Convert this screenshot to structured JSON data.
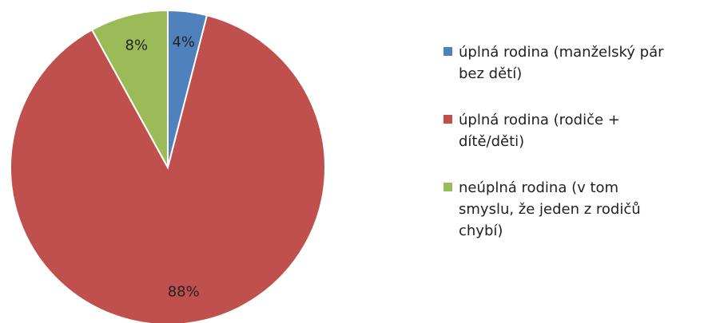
{
  "chart_data": {
    "type": "pie",
    "categories": [
      "úplná rodina (manželský pár bez dětí)",
      "úplná rodina (rodiče + dítě/děti)",
      "neúplná rodina (v tom smyslu, že jeden z rodičů chybí)"
    ],
    "values": [
      4,
      88,
      8
    ],
    "value_labels": [
      "4%",
      "88%",
      "8%"
    ],
    "colors": [
      "#4f81bd",
      "#c0504d",
      "#9bbb59"
    ],
    "legend": "right"
  }
}
